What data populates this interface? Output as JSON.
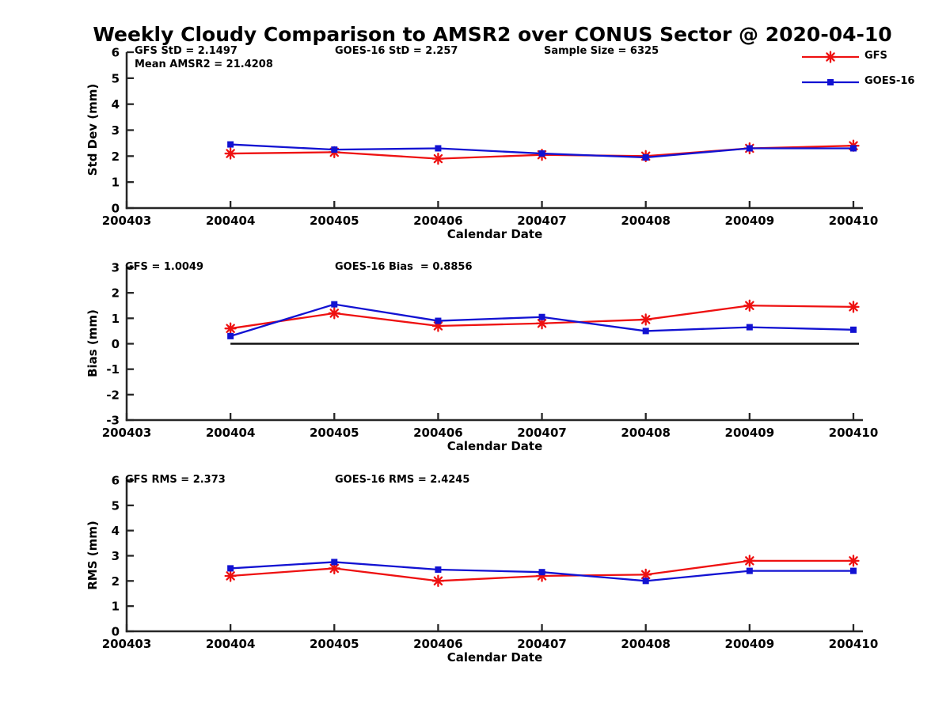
{
  "title": "Weekly Cloudy Comparison to AMSR2 over CONUS Sector @ 2020-04-10",
  "legend": {
    "entries": [
      {
        "label": "GFS",
        "color": "#ee1111",
        "marker": "star"
      },
      {
        "label": "GOES-16",
        "color": "#1212d2",
        "marker": "square"
      }
    ]
  },
  "chart_data": [
    {
      "type": "line",
      "name": "std-dev",
      "ylabel": "Std Dev (mm)",
      "xlabel": "Calendar Date",
      "ylim": [
        0,
        6
      ],
      "yticks": [
        0,
        1,
        2,
        3,
        4,
        5,
        6
      ],
      "xticks": [
        "200403",
        "200404",
        "200405",
        "200406",
        "200407",
        "200408",
        "200409",
        "200410"
      ],
      "grid": false,
      "legend_position": "top-right",
      "stats": {
        "left": "GFS StD = 2.1497",
        "left2": "Mean AMSR2 = 21.4208",
        "mid": "GOES-16 StD = 2.257",
        "right": "Sample Size = 6325"
      },
      "series": [
        {
          "name": "GFS",
          "color": "#ee1111",
          "marker": "star",
          "x": [
            "200404",
            "200405",
            "200406",
            "200407",
            "200408",
            "200409",
            "200410"
          ],
          "values": [
            2.1,
            2.15,
            1.9,
            2.05,
            2.0,
            2.3,
            2.4
          ]
        },
        {
          "name": "GOES-16",
          "color": "#1212d2",
          "marker": "square",
          "x": [
            "200404",
            "200405",
            "200406",
            "200407",
            "200408",
            "200409",
            "200410"
          ],
          "values": [
            2.45,
            2.25,
            2.3,
            2.1,
            1.95,
            2.3,
            2.3
          ]
        }
      ]
    },
    {
      "type": "line",
      "name": "bias",
      "ylabel": "Bias (mm)",
      "xlabel": "Calendar Date",
      "ylim": [
        -3,
        3
      ],
      "yticks": [
        3,
        2,
        1,
        0,
        -1,
        -2,
        -3
      ],
      "xticks": [
        "200403",
        "200404",
        "200405",
        "200406",
        "200407",
        "200408",
        "200409",
        "200410"
      ],
      "grid": false,
      "zero_line": true,
      "stats": {
        "left": "GFS = 1.0049",
        "mid": "GOES-16 Bias  = 0.8856"
      },
      "series": [
        {
          "name": "GFS",
          "color": "#ee1111",
          "marker": "star",
          "x": [
            "200404",
            "200405",
            "200406",
            "200407",
            "200408",
            "200409",
            "200410"
          ],
          "values": [
            0.6,
            1.2,
            0.7,
            0.8,
            0.95,
            1.5,
            1.45
          ]
        },
        {
          "name": "GOES-16",
          "color": "#1212d2",
          "marker": "square",
          "x": [
            "200404",
            "200405",
            "200406",
            "200407",
            "200408",
            "200409",
            "200410"
          ],
          "values": [
            0.3,
            1.55,
            0.9,
            1.05,
            0.5,
            0.65,
            0.55
          ]
        }
      ]
    },
    {
      "type": "line",
      "name": "rms",
      "ylabel": "RMS (mm)",
      "xlabel": "Calendar Date",
      "ylim": [
        0,
        6
      ],
      "yticks": [
        0,
        1,
        2,
        3,
        4,
        5,
        6
      ],
      "xticks": [
        "200403",
        "200404",
        "200405",
        "200406",
        "200407",
        "200408",
        "200409",
        "200410"
      ],
      "grid": false,
      "stats": {
        "left": "GFS RMS = 2.373",
        "mid": "GOES-16 RMS = 2.4245"
      },
      "series": [
        {
          "name": "GFS",
          "color": "#ee1111",
          "marker": "star",
          "x": [
            "200404",
            "200405",
            "200406",
            "200407",
            "200408",
            "200409",
            "200410"
          ],
          "values": [
            2.2,
            2.5,
            2.0,
            2.2,
            2.25,
            2.8,
            2.8
          ]
        },
        {
          "name": "GOES-16",
          "color": "#1212d2",
          "marker": "square",
          "x": [
            "200404",
            "200405",
            "200406",
            "200407",
            "200408",
            "200409",
            "200410"
          ],
          "values": [
            2.5,
            2.75,
            2.45,
            2.35,
            2.0,
            2.4,
            2.4
          ]
        }
      ]
    }
  ]
}
